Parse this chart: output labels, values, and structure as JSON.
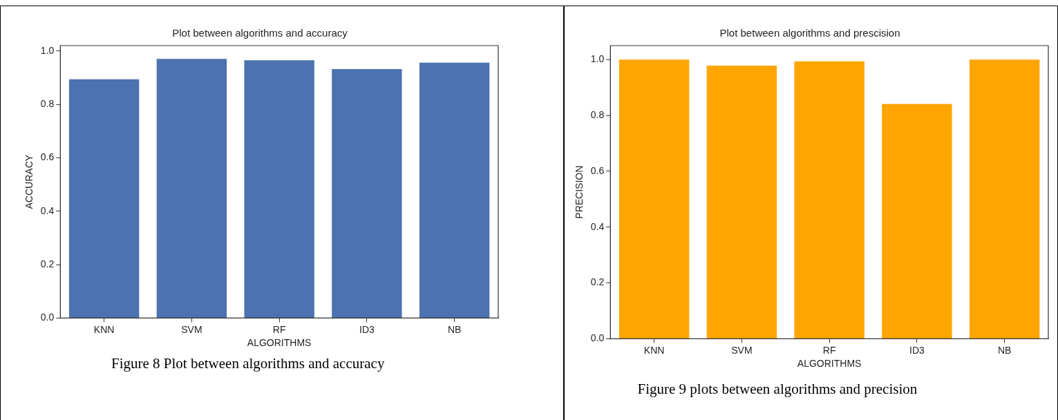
{
  "chart_data": [
    {
      "type": "bar",
      "title": "Plot between algorithms and accuracy",
      "xlabel": "ALGORITHMS",
      "ylabel": "ACCURACY",
      "categories": [
        "KNN",
        "SVM",
        "RF",
        "ID3",
        "NB"
      ],
      "values": [
        0.894,
        0.97,
        0.965,
        0.932,
        0.956
      ],
      "color": "#4c72b0",
      "ylim": [
        0,
        1.02
      ],
      "yticks": [
        {
          "value": 0,
          "label": "0.0"
        },
        {
          "value": 0.2,
          "label": "0.2"
        },
        {
          "value": 0.4,
          "label": "0.4"
        },
        {
          "value": 0.6,
          "label": "0.6"
        },
        {
          "value": 0.8,
          "label": "0.8"
        },
        {
          "value": 1,
          "label": "1.0"
        }
      ],
      "grid": false,
      "legend": false,
      "annotations": [
        "Figure 8 Plot between algorithms and accuracy"
      ]
    },
    {
      "type": "bar",
      "title": "Plot between algorithms and prescision",
      "xlabel": "ALGORITHMS",
      "ylabel": "PRECISION",
      "categories": [
        "KNN",
        "SVM",
        "RF",
        "ID3",
        "NB"
      ],
      "values": [
        1,
        0.978,
        0.994,
        0.841,
        1
      ],
      "color": "#ffa500",
      "ylim": [
        0,
        1.05
      ],
      "yticks": [
        {
          "value": 0,
          "label": "0.0"
        },
        {
          "value": 0.2,
          "label": "0.2"
        },
        {
          "value": 0.4,
          "label": "0.4"
        },
        {
          "value": 0.6,
          "label": "0.6"
        },
        {
          "value": 0.8,
          "label": "0.8"
        },
        {
          "value": 1,
          "label": "1.0"
        }
      ],
      "grid": false,
      "legend": false,
      "annotations": [
        "Figure 9 plots between algorithms and precision"
      ]
    }
  ]
}
